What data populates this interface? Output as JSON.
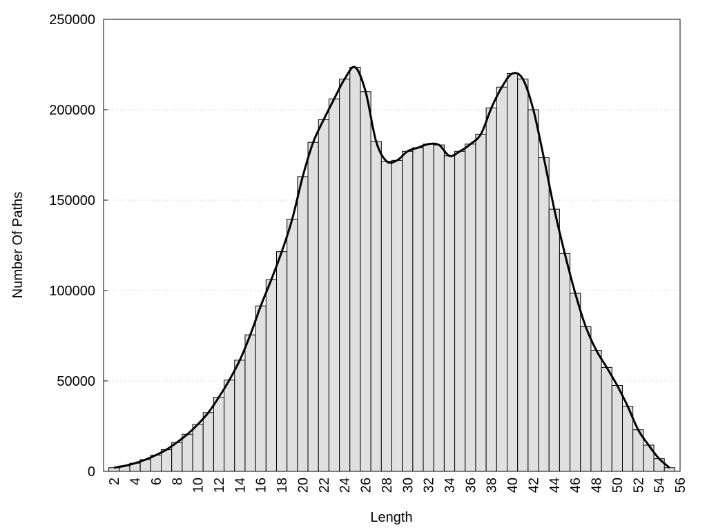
{
  "chart_data": {
    "type": "bar",
    "x_label": "Length",
    "y_label": "Number Of Paths",
    "x": [
      2,
      3,
      4,
      5,
      6,
      7,
      8,
      9,
      10,
      11,
      12,
      13,
      14,
      15,
      16,
      17,
      18,
      19,
      20,
      21,
      22,
      23,
      24,
      25,
      26,
      27,
      28,
      29,
      30,
      31,
      32,
      33,
      34,
      35,
      36,
      37,
      38,
      39,
      40,
      41,
      42,
      43,
      44,
      45,
      46,
      47,
      48,
      49,
      50,
      51,
      52,
      53,
      54,
      55
    ],
    "values": [
      2000,
      3000,
      4500,
      6500,
      9000,
      12000,
      16000,
      20500,
      26000,
      32500,
      41000,
      50500,
      61500,
      75500,
      91500,
      106000,
      121500,
      139500,
      163000,
      182000,
      194500,
      206000,
      217000,
      223500,
      210000,
      182500,
      171500,
      172000,
      177000,
      179000,
      181000,
      180500,
      174500,
      177000,
      181000,
      186500,
      201000,
      212500,
      220000,
      217000,
      200000,
      173500,
      145000,
      120500,
      98500,
      80000,
      67000,
      57500,
      47500,
      36000,
      23000,
      14500,
      7000,
      2000
    ],
    "color": "#e0e0e0",
    "edge_color": "#000000",
    "smooth_line": true,
    "line_color": "#000000",
    "xlim": [
      1,
      56
    ],
    "ylim": [
      0,
      250000
    ],
    "xticks": [
      2,
      4,
      6,
      8,
      10,
      12,
      14,
      16,
      18,
      20,
      22,
      24,
      26,
      28,
      30,
      32,
      34,
      36,
      38,
      40,
      42,
      44,
      46,
      48,
      50,
      52,
      54,
      56
    ],
    "yticks": [
      0,
      50000,
      100000,
      150000,
      200000,
      250000
    ],
    "grid": true
  }
}
